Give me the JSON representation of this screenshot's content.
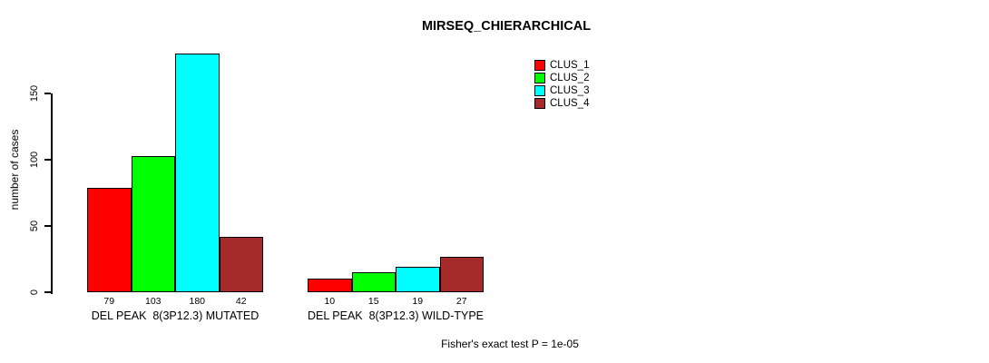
{
  "chart_data": {
    "type": "bar",
    "title": "MIRSEQ_CHIERARCHICAL",
    "ylabel": "number of cases",
    "xlabel": "",
    "ylim": [
      0,
      180
    ],
    "yticks": [
      0,
      50,
      100,
      150
    ],
    "grid": false,
    "legend_position": "top-right",
    "bar_value_labels": true,
    "categories": [
      "DEL PEAK  8(3P12.3) MUTATED",
      "DEL PEAK  8(3P12.3) WILD-TYPE"
    ],
    "series": [
      {
        "name": "CLUS_1",
        "color": "#ff0000",
        "values": [
          79,
          10
        ]
      },
      {
        "name": "CLUS_2",
        "color": "#00ff00",
        "values": [
          103,
          15
        ]
      },
      {
        "name": "CLUS_3",
        "color": "#00ffff",
        "values": [
          180,
          19
        ]
      },
      {
        "name": "CLUS_4",
        "color": "#a52a2a",
        "values": [
          42,
          27
        ]
      }
    ],
    "annotation": "Fisher's exact test P = 1e-05"
  },
  "colors": {
    "background": "#ffffff",
    "axis": "#000000",
    "text": "#000000"
  }
}
